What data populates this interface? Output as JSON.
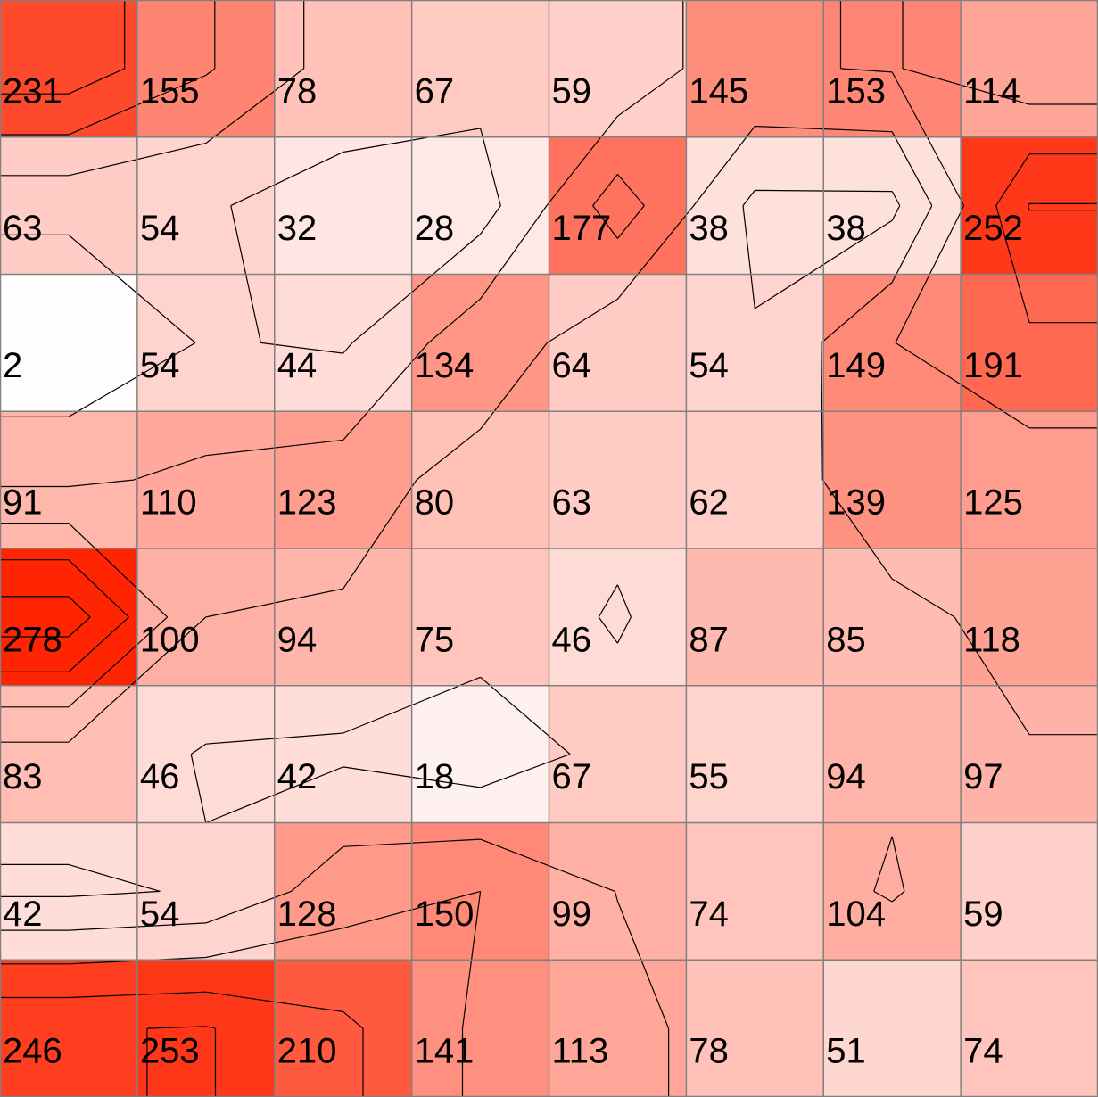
{
  "chart_data": {
    "type": "heatmap",
    "title": "",
    "xlabel": "",
    "ylabel": "",
    "rows": 8,
    "cols": 8,
    "values": [
      [
        231,
        155,
        78,
        67,
        59,
        145,
        153,
        114
      ],
      [
        63,
        54,
        32,
        28,
        177,
        38,
        38,
        252
      ],
      [
        2,
        54,
        44,
        134,
        64,
        54,
        149,
        191
      ],
      [
        91,
        110,
        123,
        80,
        63,
        62,
        139,
        125
      ],
      [
        278,
        100,
        94,
        75,
        46,
        87,
        85,
        118
      ],
      [
        83,
        46,
        42,
        18,
        67,
        55,
        94,
        97
      ],
      [
        42,
        54,
        128,
        150,
        99,
        74,
        104,
        59
      ],
      [
        246,
        253,
        210,
        141,
        113,
        78,
        51,
        74
      ]
    ],
    "value_range": [
      0,
      280
    ],
    "colors": {
      "low": "#ffffff",
      "high": "#ff2200",
      "grid": "#808080",
      "contour": "#000000"
    },
    "contour_lines": true,
    "grid": true
  }
}
